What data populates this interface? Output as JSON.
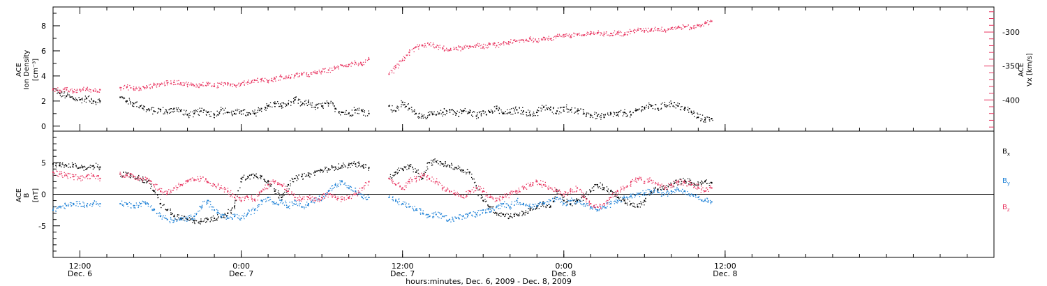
{
  "colors": {
    "black": "#000000",
    "pink": "#e8335f",
    "blue": "#1a7fd6"
  },
  "chart_data": [
    {
      "type": "scatter",
      "panel": "top",
      "xlabel": "hours:minutes, Dec. 6, 2009 - Dec. 8, 2009",
      "ylabel_lines": [
        "ACE",
        "Ion Density",
        "[cm⁻³]"
      ],
      "ylim": [
        -0.4,
        9.5
      ],
      "yticks": [
        "0",
        "2",
        "4",
        "6",
        "8"
      ],
      "ylabel_right_lines": [
        "ACE",
        "Vx [km/s]"
      ],
      "ylim_right": [
        -446,
        -263
      ],
      "yticks_right": [
        "-300",
        "-350",
        "-400"
      ],
      "x_range_hours": [
        10.0,
        80.0
      ],
      "x_ticks": [
        {
          "hour": 12,
          "time": "12:00",
          "date": "Dec. 6"
        },
        {
          "hour": 24,
          "time": "0:00",
          "date": "Dec. 7"
        },
        {
          "hour": 36,
          "time": "12:00",
          "date": "Dec. 7"
        },
        {
          "hour": 48,
          "time": "0:00",
          "date": "Dec. 8"
        },
        {
          "hour": 60,
          "time": "12:00",
          "date": "Dec. 8"
        }
      ],
      "series": [
        {
          "name": "Ion Density",
          "color": "black",
          "axis": "left",
          "x": [
            10.0,
            10.5,
            11.0,
            11.5,
            12.0,
            12.5,
            13.0,
            13.5,
            15.0,
            15.5,
            16.0,
            16.5,
            17.0,
            17.5,
            18.0,
            18.5,
            19.0,
            19.5,
            20.0,
            20.5,
            21.0,
            21.5,
            22.0,
            22.5,
            23.0,
            23.5,
            24.0,
            24.5,
            25.0,
            25.5,
            26.0,
            26.5,
            27.0,
            27.5,
            28.0,
            28.5,
            29.0,
            29.5,
            30.0,
            30.5,
            31.0,
            31.5,
            32.0,
            32.5,
            33.0,
            33.5,
            35.0,
            35.5,
            36.0,
            36.5,
            37.0,
            37.5,
            38.0,
            38.5,
            39.0,
            39.5,
            40.0,
            40.5,
            41.0,
            41.5,
            42.0,
            42.5,
            43.0,
            43.5,
            44.0,
            44.5,
            45.0,
            45.5,
            46.0,
            46.5,
            47.0,
            47.5,
            48.0,
            48.5,
            49.0,
            49.5,
            50.0,
            50.5,
            51.0,
            51.5,
            52.0,
            52.5,
            53.0,
            53.5,
            54.0,
            54.5,
            55.0,
            55.5,
            56.0,
            56.5,
            57.0,
            57.5,
            58.0,
            58.5,
            59.0
          ],
          "values": [
            2.9,
            2.6,
            2.4,
            2.2,
            2.1,
            2.2,
            2.0,
            2.0,
            2.3,
            2.0,
            1.8,
            1.6,
            1.3,
            1.2,
            1.3,
            1.1,
            1.4,
            1.2,
            0.9,
            1.0,
            1.2,
            1.1,
            0.9,
            1.3,
            1.1,
            1.0,
            1.2,
            0.9,
            1.0,
            1.4,
            1.6,
            1.8,
            1.6,
            1.8,
            2.1,
            1.7,
            1.9,
            1.5,
            1.6,
            1.8,
            1.4,
            1.1,
            1.0,
            1.3,
            1.2,
            1.0,
            1.6,
            1.2,
            1.9,
            1.4,
            1.0,
            0.8,
            0.9,
            0.9,
            1.1,
            1.3,
            1.0,
            1.2,
            1.1,
            0.8,
            1.2,
            1.1,
            1.4,
            1.0,
            1.1,
            1.3,
            1.2,
            0.9,
            1.1,
            1.5,
            1.3,
            1.2,
            1.5,
            1.3,
            1.2,
            1.0,
            0.9,
            0.8,
            0.7,
            1.0,
            0.9,
            1.1,
            0.9,
            1.3,
            1.5,
            1.6,
            1.4,
            1.7,
            1.8,
            1.6,
            1.4,
            1.1,
            0.7,
            0.5,
            0.6
          ]
        },
        {
          "name": "Vx",
          "color": "pink",
          "axis": "right",
          "x": [
            10.0,
            10.5,
            11.0,
            11.5,
            12.0,
            12.5,
            13.0,
            13.5,
            15.0,
            15.5,
            16.0,
            16.5,
            17.0,
            17.5,
            18.0,
            18.5,
            19.0,
            19.5,
            20.0,
            20.5,
            21.0,
            21.5,
            22.0,
            22.5,
            23.0,
            23.5,
            24.0,
            24.5,
            25.0,
            25.5,
            26.0,
            26.5,
            27.0,
            27.5,
            28.0,
            28.5,
            29.0,
            29.5,
            30.0,
            30.5,
            31.0,
            31.5,
            32.0,
            32.5,
            33.0,
            33.5,
            35.0,
            35.5,
            36.0,
            36.5,
            37.0,
            37.5,
            38.0,
            38.5,
            39.0,
            39.5,
            40.0,
            40.5,
            41.0,
            41.5,
            42.0,
            42.5,
            43.0,
            43.5,
            44.0,
            44.5,
            45.0,
            45.5,
            46.0,
            46.5,
            47.0,
            47.5,
            48.0,
            48.5,
            49.0,
            49.5,
            50.0,
            50.5,
            51.0,
            51.5,
            52.0,
            52.5,
            53.0,
            53.5,
            54.0,
            54.5,
            55.0,
            55.5,
            56.0,
            56.5,
            57.0,
            57.5,
            58.0,
            58.5,
            59.0
          ],
          "values": [
            -384,
            -386,
            -385,
            -388,
            -385,
            -384,
            -386,
            -385,
            -382,
            -381,
            -384,
            -383,
            -381,
            -378,
            -377,
            -375,
            -374,
            -375,
            -377,
            -379,
            -378,
            -376,
            -380,
            -377,
            -375,
            -378,
            -376,
            -374,
            -371,
            -370,
            -372,
            -369,
            -366,
            -367,
            -364,
            -362,
            -363,
            -360,
            -358,
            -356,
            -353,
            -349,
            -348,
            -345,
            -349,
            -340,
            -362,
            -352,
            -342,
            -330,
            -322,
            -320,
            -318,
            -322,
            -324,
            -327,
            -323,
            -325,
            -321,
            -319,
            -322,
            -318,
            -320,
            -316,
            -315,
            -313,
            -312,
            -310,
            -314,
            -308,
            -310,
            -306,
            -304,
            -306,
            -303,
            -305,
            -302,
            -301,
            -303,
            -302,
            -300,
            -304,
            -299,
            -297,
            -298,
            -296,
            -295,
            -297,
            -294,
            -293,
            -292,
            -294,
            -290,
            -287,
            -284
          ]
        }
      ]
    },
    {
      "type": "scatter",
      "panel": "bottom",
      "ylabel_lines": [
        "ACE",
        "B",
        "[nT]"
      ],
      "ylim": [
        -10,
        10
      ],
      "yticks": [
        "-5",
        "0",
        "5"
      ],
      "legend_placement": "right",
      "legend": [
        "Bx",
        "By",
        "Bz"
      ],
      "x_range_hours": [
        10.0,
        80.0
      ],
      "series": [
        {
          "name": "Bx",
          "color": "black",
          "x": [
            10.0,
            10.5,
            11.0,
            11.5,
            12.0,
            12.5,
            13.0,
            13.5,
            15.0,
            15.5,
            16.0,
            16.5,
            17.0,
            17.5,
            18.0,
            18.5,
            19.0,
            19.5,
            20.0,
            20.5,
            21.0,
            21.5,
            22.0,
            22.5,
            23.0,
            23.5,
            24.0,
            24.5,
            25.0,
            25.5,
            26.0,
            26.5,
            27.0,
            27.5,
            28.0,
            28.5,
            29.0,
            29.5,
            30.0,
            30.5,
            31.0,
            31.5,
            32.0,
            32.5,
            33.0,
            33.5,
            35.0,
            35.5,
            36.0,
            36.5,
            37.0,
            37.5,
            38.0,
            38.5,
            39.0,
            39.5,
            40.0,
            40.5,
            41.0,
            41.5,
            42.0,
            42.5,
            43.0,
            43.5,
            44.0,
            44.5,
            45.0,
            45.5,
            46.0,
            46.5,
            47.0,
            47.5,
            48.0,
            48.5,
            49.0,
            49.5,
            50.0,
            50.5,
            51.0,
            51.5,
            52.0,
            52.5,
            53.0,
            53.5,
            54.0,
            54.5,
            55.0,
            55.5,
            56.0,
            56.5,
            57.0,
            57.5,
            58.0,
            58.5,
            59.0
          ],
          "values": [
            4.8,
            4.6,
            4.5,
            4.7,
            4.2,
            4.0,
            4.5,
            4.3,
            3.2,
            3.0,
            2.8,
            2.5,
            2.0,
            0.5,
            -1.5,
            -2.5,
            -3.5,
            -3.8,
            -4.0,
            -4.2,
            -4.3,
            -4.0,
            -3.8,
            -3.5,
            -3.0,
            -2.0,
            2.5,
            2.8,
            3.0,
            2.8,
            2.0,
            0.5,
            -0.5,
            1.5,
            2.5,
            2.8,
            3.0,
            3.5,
            3.8,
            4.0,
            4.3,
            4.5,
            4.6,
            4.8,
            4.5,
            4.2,
            2.5,
            3.5,
            4.0,
            4.5,
            3.5,
            2.5,
            5.0,
            5.2,
            4.8,
            4.5,
            4.2,
            3.8,
            3.5,
            1.0,
            -1.0,
            -2.0,
            -3.0,
            -3.2,
            -3.5,
            -3.2,
            -3.0,
            -2.5,
            -2.0,
            -1.5,
            -2.0,
            0.5,
            -1.0,
            -1.5,
            -1.0,
            -0.5,
            0.5,
            1.5,
            1.0,
            0.5,
            -0.5,
            -1.0,
            -1.5,
            -2.0,
            -1.0,
            0.5,
            0.8,
            1.0,
            1.5,
            2.0,
            2.2,
            1.8,
            1.5,
            2.0,
            1.8
          ]
        },
        {
          "name": "By",
          "color": "blue",
          "x": [
            10.0,
            10.5,
            11.0,
            11.5,
            12.0,
            12.5,
            13.0,
            13.5,
            15.0,
            15.5,
            16.0,
            16.5,
            17.0,
            17.5,
            18.0,
            18.5,
            19.0,
            19.5,
            20.0,
            20.5,
            21.0,
            21.5,
            22.0,
            22.5,
            23.0,
            23.5,
            24.0,
            24.5,
            25.0,
            25.5,
            26.0,
            26.5,
            27.0,
            27.5,
            28.0,
            28.5,
            29.0,
            29.5,
            30.0,
            30.5,
            31.0,
            31.5,
            32.0,
            32.5,
            33.0,
            33.5,
            35.0,
            35.5,
            36.0,
            36.5,
            37.0,
            37.5,
            38.0,
            38.5,
            39.0,
            39.5,
            40.0,
            40.5,
            41.0,
            41.5,
            42.0,
            42.5,
            43.0,
            43.5,
            44.0,
            44.5,
            45.0,
            45.5,
            46.0,
            46.5,
            47.0,
            47.5,
            48.0,
            48.5,
            49.0,
            49.5,
            50.0,
            50.5,
            51.0,
            51.5,
            52.0,
            52.5,
            53.0,
            53.5,
            54.0,
            54.5,
            55.0,
            55.5,
            56.0,
            56.5,
            57.0,
            57.5,
            58.0,
            58.5,
            59.0
          ],
          "values": [
            -2.5,
            -2.0,
            -1.8,
            -1.5,
            -1.5,
            -1.8,
            -1.4,
            -1.5,
            -1.5,
            -1.6,
            -1.8,
            -1.5,
            -1.4,
            -2.5,
            -3.5,
            -4.0,
            -4.2,
            -4.0,
            -3.8,
            -3.5,
            -2.0,
            -1.0,
            -2.5,
            -3.5,
            -3.8,
            -3.5,
            -3.8,
            -3.0,
            -2.5,
            -1.0,
            -0.5,
            -1.5,
            -1.0,
            -2.0,
            -1.0,
            -2.0,
            -1.5,
            -1.0,
            -0.5,
            0.5,
            1.5,
            2.0,
            1.0,
            0.5,
            -0.5,
            -0.5,
            -0.5,
            -1.0,
            -1.5,
            -2.0,
            -2.5,
            -3.0,
            -3.5,
            -3.2,
            -3.5,
            -4.0,
            -3.8,
            -3.5,
            -3.0,
            -3.2,
            -2.5,
            -2.8,
            -2.0,
            -1.5,
            -2.0,
            -1.0,
            -1.5,
            -2.0,
            -1.8,
            -1.5,
            -1.0,
            -0.5,
            -1.5,
            -1.0,
            -1.2,
            -1.5,
            -2.0,
            -2.5,
            -2.0,
            -1.5,
            -1.0,
            -0.5,
            -0.3,
            0.0,
            0.2,
            0.5,
            0.3,
            0.0,
            0.5,
            0.8,
            0.5,
            0.0,
            -0.5,
            -1.0,
            -1.2
          ]
        },
        {
          "name": "Bz",
          "color": "pink",
          "x": [
            10.0,
            10.5,
            11.0,
            11.5,
            12.0,
            12.5,
            13.0,
            13.5,
            15.0,
            15.5,
            16.0,
            16.5,
            17.0,
            17.5,
            18.0,
            18.5,
            19.0,
            19.5,
            20.0,
            20.5,
            21.0,
            21.5,
            22.0,
            22.5,
            23.0,
            23.5,
            24.0,
            24.5,
            25.0,
            25.5,
            26.0,
            26.5,
            27.0,
            27.5,
            28.0,
            28.5,
            29.0,
            29.5,
            30.0,
            30.5,
            31.0,
            31.5,
            32.0,
            32.5,
            33.0,
            33.5,
            35.0,
            35.5,
            36.0,
            36.5,
            37.0,
            37.5,
            38.0,
            38.5,
            39.0,
            39.5,
            40.0,
            40.5,
            41.0,
            41.5,
            42.0,
            42.5,
            43.0,
            43.5,
            44.0,
            44.5,
            45.0,
            45.5,
            46.0,
            46.5,
            47.0,
            47.5,
            48.0,
            48.5,
            49.0,
            49.5,
            50.0,
            50.5,
            51.0,
            51.5,
            52.0,
            52.5,
            53.0,
            53.5,
            54.0,
            54.5,
            55.0,
            55.5,
            56.0,
            56.5,
            57.0,
            57.5,
            58.0,
            58.5,
            59.0
          ],
          "values": [
            3.5,
            3.2,
            3.0,
            2.8,
            2.5,
            2.8,
            3.0,
            2.5,
            3.2,
            3.0,
            2.8,
            2.5,
            2.5,
            1.5,
            0.5,
            0.2,
            1.0,
            1.5,
            2.0,
            2.2,
            2.5,
            2.0,
            1.5,
            1.0,
            0.5,
            -0.5,
            -1.0,
            -0.5,
            -0.8,
            0.5,
            1.5,
            2.0,
            1.5,
            0.5,
            -0.5,
            -0.8,
            -0.5,
            -1.0,
            -0.5,
            0.0,
            -0.5,
            -0.8,
            -0.5,
            0.0,
            1.0,
            2.0,
            2.5,
            1.5,
            1.0,
            2.0,
            2.5,
            3.0,
            2.5,
            2.0,
            1.0,
            0.5,
            0.0,
            -0.5,
            0.5,
            1.0,
            0.5,
            -0.5,
            -1.0,
            -0.5,
            0.0,
            0.5,
            1.0,
            1.5,
            2.0,
            1.5,
            1.0,
            0.5,
            0.0,
            0.5,
            1.0,
            -0.5,
            -1.5,
            -2.0,
            -1.5,
            -0.5,
            0.5,
            1.0,
            2.0,
            2.5,
            2.0,
            2.2,
            1.5,
            1.0,
            1.5,
            2.0,
            1.8,
            1.5,
            1.0,
            0.5,
            1.0
          ]
        }
      ]
    }
  ]
}
